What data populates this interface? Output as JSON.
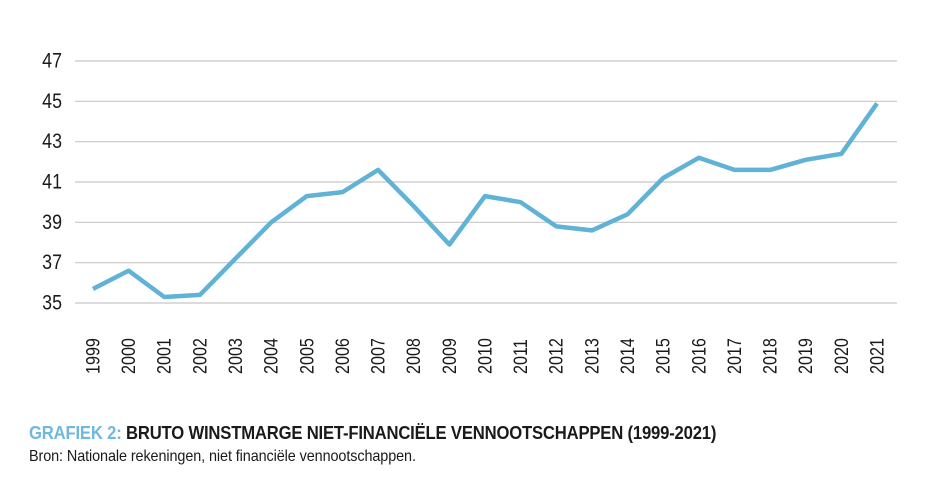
{
  "page": {
    "background": "#ffffff",
    "text_color": "#1a1a1a"
  },
  "chart_data": {
    "type": "line",
    "title": "BRUTO WINSTMARGE NIET-FINANCIËLE VENNOOTSCHAPPEN (1999-2021)",
    "categories": [
      "1999",
      "2000",
      "2001",
      "2002",
      "2003",
      "2004",
      "2005",
      "2006",
      "2007",
      "2008",
      "2009",
      "2010",
      "2011",
      "2012",
      "2013",
      "2014",
      "2015",
      "2016",
      "2017",
      "2018",
      "2019",
      "2020",
      "2021"
    ],
    "series": [
      {
        "name": "Bruto winstmarge niet-financiële vennootschappen",
        "values": [
          35.7,
          36.6,
          35.3,
          35.4,
          37.2,
          39.0,
          40.3,
          40.5,
          41.6,
          39.8,
          37.9,
          40.3,
          40.0,
          38.8,
          38.6,
          39.4,
          41.2,
          42.2,
          41.6,
          41.6,
          42.1,
          42.4,
          44.9
        ]
      }
    ],
    "xlabel": "",
    "ylabel": "",
    "ylim": [
      35,
      47
    ],
    "yticks": [
      47,
      45,
      43,
      41,
      39,
      37,
      35
    ],
    "grid": "horizontal-only",
    "legend": "none",
    "x_tick_rotation_deg": -90,
    "line_color": "#60B2D6",
    "gridline_color": "#C8C8C8",
    "tick_label_color": "#1a1a1a"
  },
  "caption": {
    "label": "GRAFIEK 2:",
    "label_color": "#70B9DC",
    "title": "BRUTO WINSTMARGE NIET-FINANCIËLE VENNOOTSCHAPPEN (1999-2021)",
    "source": "Bron: Nationale rekeningen, niet financiële vennootschappen."
  }
}
